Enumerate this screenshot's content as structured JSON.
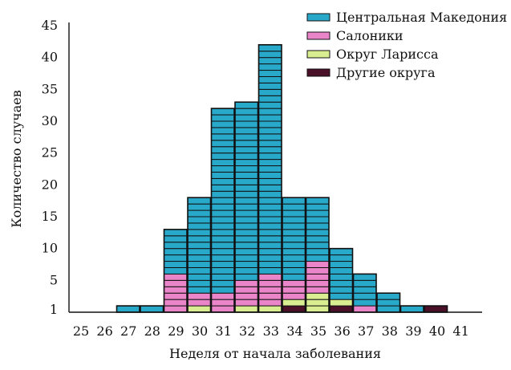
{
  "chart_data": {
    "type": "bar",
    "stacked": true,
    "unit_cells": true,
    "categories": [
      "25",
      "26",
      "27",
      "28",
      "29",
      "30",
      "31",
      "32",
      "33",
      "34",
      "35",
      "36",
      "37",
      "38",
      "39",
      "40",
      "41"
    ],
    "series": [
      {
        "name": "Центральная Македония",
        "color": "#29a9c9",
        "values": [
          0,
          0,
          1,
          1,
          7,
          15,
          29,
          28,
          36,
          13,
          10,
          8,
          5,
          3,
          1,
          0,
          0
        ]
      },
      {
        "name": "Салоники",
        "color": "#e985c8",
        "values": [
          0,
          0,
          0,
          0,
          6,
          2,
          3,
          4,
          5,
          3,
          5,
          0,
          1,
          0,
          0,
          0,
          0
        ]
      },
      {
        "name": "Округ Ларисса",
        "color": "#d9ee90",
        "values": [
          0,
          0,
          0,
          0,
          0,
          1,
          0,
          1,
          1,
          1,
          3,
          1,
          0,
          0,
          0,
          0,
          0
        ]
      },
      {
        "name": "Другие округа",
        "color": "#4a1028",
        "values": [
          0,
          0,
          0,
          0,
          0,
          0,
          0,
          0,
          0,
          1,
          0,
          1,
          0,
          0,
          0,
          1,
          0
        ]
      }
    ],
    "xlabel": "Неделя от начала заболевания",
    "ylabel": "Количество случаев",
    "yticks": [
      "1",
      "5",
      "10",
      "15",
      "20",
      "25",
      "30",
      "35",
      "40",
      "45"
    ],
    "ylim": [
      0,
      45
    ],
    "grid": false,
    "legend_position": "top-right"
  }
}
